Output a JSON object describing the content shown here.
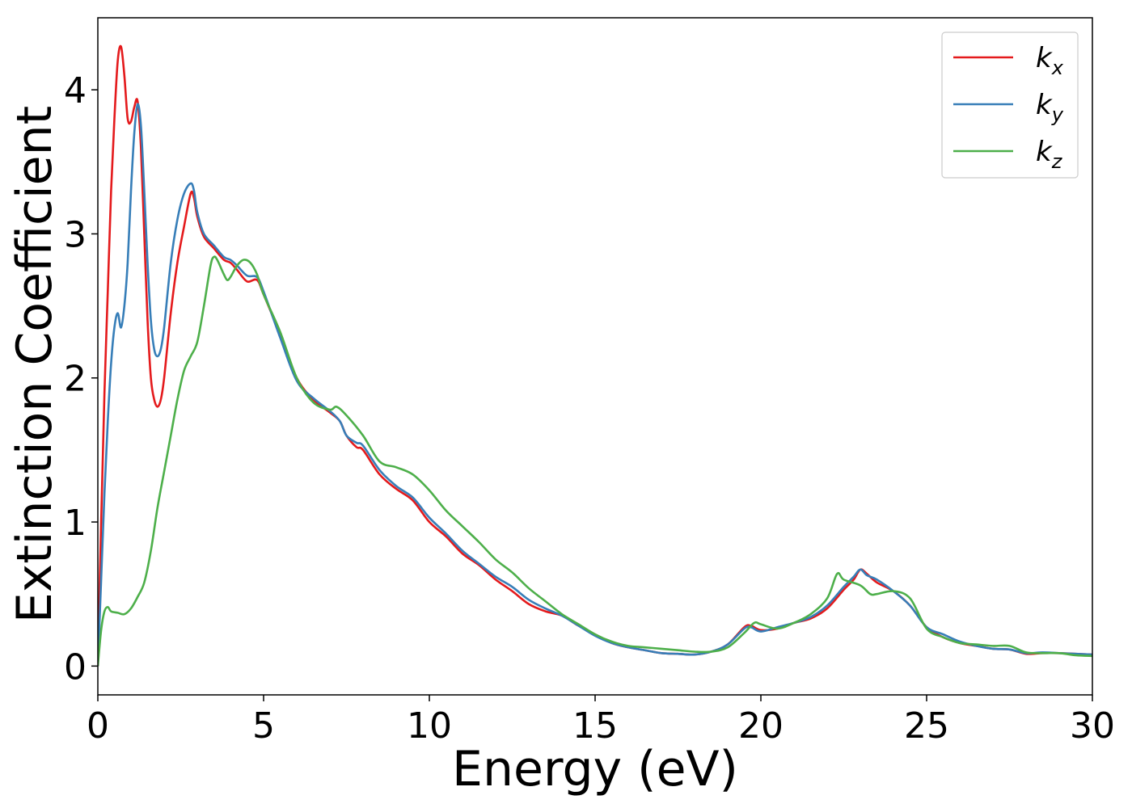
{
  "chart_data": {
    "type": "line",
    "title": "",
    "xlabel": "Energy (eV)",
    "ylabel": "Extinction Coefficient",
    "xlim": [
      0,
      30
    ],
    "ylim": [
      -0.2,
      4.5
    ],
    "xticks": [
      0,
      5,
      10,
      15,
      20,
      25,
      30
    ],
    "yticks": [
      0,
      1,
      2,
      3,
      4
    ],
    "grid": false,
    "legend_position": "top-right",
    "series": [
      {
        "name": "k_x",
        "label_base": "k",
        "label_sub": "x",
        "color": "#e41a1c",
        "points": [
          [
            0,
            0
          ],
          [
            0.1,
            1.0
          ],
          [
            0.2,
            1.9
          ],
          [
            0.3,
            2.6
          ],
          [
            0.4,
            3.3
          ],
          [
            0.5,
            3.8
          ],
          [
            0.6,
            4.2
          ],
          [
            0.7,
            4.3
          ],
          [
            0.8,
            4.1
          ],
          [
            0.9,
            3.8
          ],
          [
            1.0,
            3.78
          ],
          [
            1.1,
            3.88
          ],
          [
            1.2,
            3.92
          ],
          [
            1.3,
            3.6
          ],
          [
            1.4,
            3.0
          ],
          [
            1.5,
            2.4
          ],
          [
            1.6,
            2.0
          ],
          [
            1.7,
            1.85
          ],
          [
            1.8,
            1.8
          ],
          [
            1.9,
            1.85
          ],
          [
            2.0,
            2.0
          ],
          [
            2.2,
            2.45
          ],
          [
            2.4,
            2.8
          ],
          [
            2.6,
            3.05
          ],
          [
            2.8,
            3.28
          ],
          [
            2.9,
            3.25
          ],
          [
            3.0,
            3.12
          ],
          [
            3.2,
            2.98
          ],
          [
            3.5,
            2.9
          ],
          [
            3.8,
            2.82
          ],
          [
            4.0,
            2.8
          ],
          [
            4.2,
            2.75
          ],
          [
            4.5,
            2.67
          ],
          [
            4.8,
            2.68
          ],
          [
            5.0,
            2.58
          ],
          [
            5.5,
            2.3
          ],
          [
            6.0,
            2.0
          ],
          [
            6.5,
            1.85
          ],
          [
            7.0,
            1.76
          ],
          [
            7.3,
            1.7
          ],
          [
            7.5,
            1.6
          ],
          [
            7.8,
            1.52
          ],
          [
            8.0,
            1.5
          ],
          [
            8.5,
            1.33
          ],
          [
            9.0,
            1.23
          ],
          [
            9.5,
            1.15
          ],
          [
            10.0,
            1.0
          ],
          [
            10.5,
            0.9
          ],
          [
            11.0,
            0.78
          ],
          [
            11.5,
            0.7
          ],
          [
            12.0,
            0.6
          ],
          [
            12.5,
            0.52
          ],
          [
            13.0,
            0.43
          ],
          [
            13.5,
            0.38
          ],
          [
            14.0,
            0.35
          ],
          [
            14.5,
            0.28
          ],
          [
            15.0,
            0.22
          ],
          [
            15.5,
            0.16
          ],
          [
            16.0,
            0.13
          ],
          [
            16.5,
            0.11
          ],
          [
            17.0,
            0.09
          ],
          [
            17.5,
            0.085
          ],
          [
            18.0,
            0.08
          ],
          [
            18.5,
            0.1
          ],
          [
            19.0,
            0.15
          ],
          [
            19.5,
            0.27
          ],
          [
            19.7,
            0.28
          ],
          [
            20.0,
            0.25
          ],
          [
            20.5,
            0.26
          ],
          [
            21.0,
            0.3
          ],
          [
            21.5,
            0.33
          ],
          [
            22.0,
            0.4
          ],
          [
            22.5,
            0.53
          ],
          [
            22.8,
            0.6
          ],
          [
            23.0,
            0.67
          ],
          [
            23.2,
            0.64
          ],
          [
            23.5,
            0.58
          ],
          [
            24.0,
            0.52
          ],
          [
            24.5,
            0.42
          ],
          [
            25.0,
            0.27
          ],
          [
            25.5,
            0.2
          ],
          [
            26.0,
            0.16
          ],
          [
            26.5,
            0.14
          ],
          [
            27.0,
            0.12
          ],
          [
            27.5,
            0.115
          ],
          [
            28.0,
            0.085
          ],
          [
            28.5,
            0.09
          ],
          [
            29.0,
            0.09
          ],
          [
            29.5,
            0.085
          ],
          [
            30.0,
            0.08
          ]
        ]
      },
      {
        "name": "k_y",
        "label_base": "k",
        "label_sub": "y",
        "color": "#377eb8",
        "points": [
          [
            0,
            0
          ],
          [
            0.1,
            0.6
          ],
          [
            0.2,
            1.2
          ],
          [
            0.3,
            1.7
          ],
          [
            0.4,
            2.1
          ],
          [
            0.5,
            2.35
          ],
          [
            0.6,
            2.45
          ],
          [
            0.7,
            2.35
          ],
          [
            0.8,
            2.5
          ],
          [
            0.9,
            2.8
          ],
          [
            1.0,
            3.3
          ],
          [
            1.1,
            3.7
          ],
          [
            1.2,
            3.9
          ],
          [
            1.3,
            3.75
          ],
          [
            1.4,
            3.3
          ],
          [
            1.5,
            2.8
          ],
          [
            1.6,
            2.4
          ],
          [
            1.7,
            2.2
          ],
          [
            1.8,
            2.15
          ],
          [
            1.9,
            2.2
          ],
          [
            2.0,
            2.35
          ],
          [
            2.2,
            2.8
          ],
          [
            2.4,
            3.1
          ],
          [
            2.6,
            3.28
          ],
          [
            2.8,
            3.35
          ],
          [
            2.9,
            3.3
          ],
          [
            3.0,
            3.15
          ],
          [
            3.2,
            3.0
          ],
          [
            3.5,
            2.92
          ],
          [
            3.8,
            2.84
          ],
          [
            4.0,
            2.82
          ],
          [
            4.2,
            2.78
          ],
          [
            4.5,
            2.71
          ],
          [
            4.8,
            2.7
          ],
          [
            5.0,
            2.6
          ],
          [
            5.5,
            2.28
          ],
          [
            6.0,
            1.98
          ],
          [
            6.5,
            1.86
          ],
          [
            7.0,
            1.77
          ],
          [
            7.3,
            1.7
          ],
          [
            7.5,
            1.6
          ],
          [
            7.8,
            1.55
          ],
          [
            8.0,
            1.53
          ],
          [
            8.5,
            1.36
          ],
          [
            9.0,
            1.25
          ],
          [
            9.5,
            1.17
          ],
          [
            10.0,
            1.03
          ],
          [
            10.5,
            0.92
          ],
          [
            11.0,
            0.8
          ],
          [
            11.5,
            0.71
          ],
          [
            12.0,
            0.62
          ],
          [
            12.5,
            0.55
          ],
          [
            13.0,
            0.46
          ],
          [
            13.5,
            0.4
          ],
          [
            14.0,
            0.35
          ],
          [
            14.5,
            0.28
          ],
          [
            15.0,
            0.21
          ],
          [
            15.5,
            0.16
          ],
          [
            16.0,
            0.13
          ],
          [
            16.5,
            0.11
          ],
          [
            17.0,
            0.09
          ],
          [
            17.5,
            0.085
          ],
          [
            18.0,
            0.08
          ],
          [
            18.5,
            0.1
          ],
          [
            19.0,
            0.15
          ],
          [
            19.5,
            0.26
          ],
          [
            19.7,
            0.27
          ],
          [
            20.0,
            0.24
          ],
          [
            20.5,
            0.27
          ],
          [
            21.0,
            0.3
          ],
          [
            21.5,
            0.34
          ],
          [
            22.0,
            0.42
          ],
          [
            22.5,
            0.55
          ],
          [
            22.8,
            0.62
          ],
          [
            23.0,
            0.67
          ],
          [
            23.2,
            0.63
          ],
          [
            23.5,
            0.6
          ],
          [
            24.0,
            0.52
          ],
          [
            24.5,
            0.42
          ],
          [
            25.0,
            0.27
          ],
          [
            25.5,
            0.22
          ],
          [
            26.0,
            0.17
          ],
          [
            26.5,
            0.14
          ],
          [
            27.0,
            0.12
          ],
          [
            27.5,
            0.115
          ],
          [
            28.0,
            0.09
          ],
          [
            28.5,
            0.095
          ],
          [
            29.0,
            0.09
          ],
          [
            29.5,
            0.085
          ],
          [
            30.0,
            0.08
          ]
        ]
      },
      {
        "name": "k_z",
        "label_base": "k",
        "label_sub": "z",
        "color": "#4daf4a",
        "points": [
          [
            0,
            0
          ],
          [
            0.1,
            0.25
          ],
          [
            0.2,
            0.38
          ],
          [
            0.3,
            0.41
          ],
          [
            0.4,
            0.38
          ],
          [
            0.6,
            0.37
          ],
          [
            0.8,
            0.36
          ],
          [
            1.0,
            0.4
          ],
          [
            1.2,
            0.48
          ],
          [
            1.4,
            0.58
          ],
          [
            1.6,
            0.8
          ],
          [
            1.8,
            1.1
          ],
          [
            2.0,
            1.35
          ],
          [
            2.2,
            1.6
          ],
          [
            2.4,
            1.85
          ],
          [
            2.6,
            2.05
          ],
          [
            2.8,
            2.15
          ],
          [
            3.0,
            2.25
          ],
          [
            3.2,
            2.5
          ],
          [
            3.4,
            2.78
          ],
          [
            3.5,
            2.84
          ],
          [
            3.6,
            2.82
          ],
          [
            3.8,
            2.72
          ],
          [
            3.9,
            2.68
          ],
          [
            4.0,
            2.7
          ],
          [
            4.2,
            2.78
          ],
          [
            4.4,
            2.82
          ],
          [
            4.6,
            2.8
          ],
          [
            4.8,
            2.72
          ],
          [
            5.0,
            2.58
          ],
          [
            5.5,
            2.32
          ],
          [
            6.0,
            2.0
          ],
          [
            6.5,
            1.83
          ],
          [
            7.0,
            1.78
          ],
          [
            7.2,
            1.8
          ],
          [
            7.5,
            1.74
          ],
          [
            8.0,
            1.6
          ],
          [
            8.5,
            1.42
          ],
          [
            9.0,
            1.38
          ],
          [
            9.5,
            1.33
          ],
          [
            10.0,
            1.22
          ],
          [
            10.5,
            1.08
          ],
          [
            11.0,
            0.97
          ],
          [
            11.5,
            0.86
          ],
          [
            12.0,
            0.74
          ],
          [
            12.5,
            0.65
          ],
          [
            13.0,
            0.54
          ],
          [
            13.5,
            0.45
          ],
          [
            14.0,
            0.36
          ],
          [
            14.5,
            0.29
          ],
          [
            15.0,
            0.22
          ],
          [
            15.5,
            0.17
          ],
          [
            16.0,
            0.14
          ],
          [
            16.5,
            0.13
          ],
          [
            17.0,
            0.12
          ],
          [
            17.5,
            0.11
          ],
          [
            18.0,
            0.1
          ],
          [
            18.5,
            0.1
          ],
          [
            19.0,
            0.13
          ],
          [
            19.5,
            0.23
          ],
          [
            19.8,
            0.3
          ],
          [
            20.0,
            0.29
          ],
          [
            20.5,
            0.26
          ],
          [
            21.0,
            0.3
          ],
          [
            21.5,
            0.36
          ],
          [
            22.0,
            0.47
          ],
          [
            22.3,
            0.64
          ],
          [
            22.5,
            0.6
          ],
          [
            23.0,
            0.56
          ],
          [
            23.3,
            0.5
          ],
          [
            23.5,
            0.5
          ],
          [
            24.0,
            0.52
          ],
          [
            24.5,
            0.47
          ],
          [
            25.0,
            0.26
          ],
          [
            25.5,
            0.2
          ],
          [
            26.0,
            0.16
          ],
          [
            26.5,
            0.15
          ],
          [
            27.0,
            0.14
          ],
          [
            27.5,
            0.14
          ],
          [
            28.0,
            0.095
          ],
          [
            28.5,
            0.09
          ],
          [
            29.0,
            0.09
          ],
          [
            29.5,
            0.075
          ],
          [
            30.0,
            0.07
          ]
        ]
      }
    ]
  }
}
